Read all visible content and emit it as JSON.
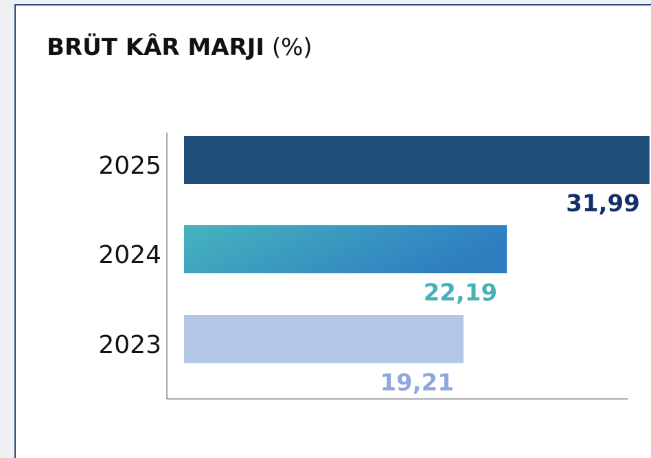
{
  "chart_data": {
    "type": "barh",
    "title": "BRÜT KÂR MARJI",
    "title_unit": "(%)",
    "categories": [
      "2025",
      "2024",
      "2023"
    ],
    "values": [
      31.99,
      22.19,
      19.21
    ],
    "value_labels": [
      "31,99",
      "22,19",
      "19,21"
    ],
    "colors": [
      "#1f4e79",
      "#46b4be",
      "#b4c7e7"
    ],
    "gradient_end": [
      null,
      "#2e7ec0",
      null
    ],
    "label_colors": [
      "#14306b",
      "#4ab0b8",
      "#8fa8dc"
    ],
    "xlim": [
      0,
      32
    ]
  }
}
